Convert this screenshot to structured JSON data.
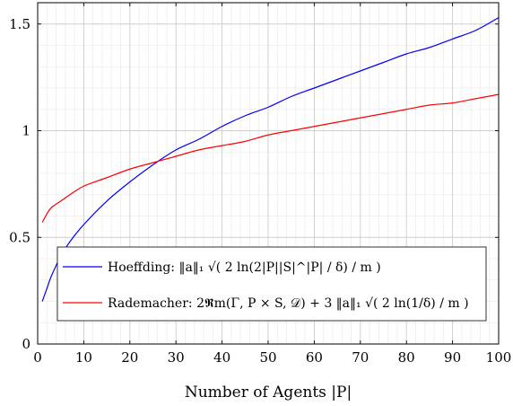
{
  "chart_data": {
    "type": "line",
    "xlabel": "Number of Agents |P|",
    "ylabel": "",
    "xlim": [
      0,
      100
    ],
    "ylim": [
      0,
      1.6
    ],
    "x_ticks": [
      0,
      10,
      20,
      30,
      40,
      50,
      60,
      70,
      80,
      90,
      100
    ],
    "x_tick_labels": [
      "0",
      "10",
      "20",
      "30",
      "40",
      "50",
      "60",
      "70",
      "80",
      "90",
      "100"
    ],
    "y_ticks": [
      0,
      0.5,
      1,
      1.5
    ],
    "y_tick_labels": [
      "0",
      "0.5",
      "1",
      "1.5"
    ],
    "grid": "major and minor",
    "legend_position": "bottom-center",
    "series": [
      {
        "name": "Hoeffding: ‖a‖₁ √( 2 ln(2|P||S|^|P| / δ) / m )",
        "color": "#0000ff",
        "x": [
          1,
          2,
          3,
          5,
          7,
          10,
          15,
          20,
          25,
          30,
          35,
          40,
          45,
          50,
          55,
          60,
          65,
          70,
          75,
          80,
          85,
          90,
          95,
          100
        ],
        "y": [
          0.2,
          0.26,
          0.32,
          0.41,
          0.48,
          0.56,
          0.67,
          0.76,
          0.84,
          0.91,
          0.96,
          1.02,
          1.07,
          1.11,
          1.16,
          1.2,
          1.24,
          1.28,
          1.32,
          1.36,
          1.39,
          1.43,
          1.47,
          1.53
        ]
      },
      {
        "name": "Rademacher: 2𝕽m(Γ, P × S, 𝒟) + 3 ‖a‖₁ √( 2 ln(1/δ) / m )",
        "color": "#ff0000",
        "x": [
          1,
          2,
          3,
          5,
          7,
          10,
          15,
          20,
          25,
          30,
          35,
          40,
          45,
          50,
          55,
          60,
          65,
          70,
          75,
          80,
          85,
          90,
          95,
          100
        ],
        "y": [
          0.57,
          0.61,
          0.64,
          0.67,
          0.7,
          0.74,
          0.78,
          0.82,
          0.85,
          0.88,
          0.91,
          0.93,
          0.95,
          0.98,
          1.0,
          1.02,
          1.04,
          1.06,
          1.08,
          1.1,
          1.12,
          1.13,
          1.15,
          1.17
        ]
      }
    ]
  }
}
